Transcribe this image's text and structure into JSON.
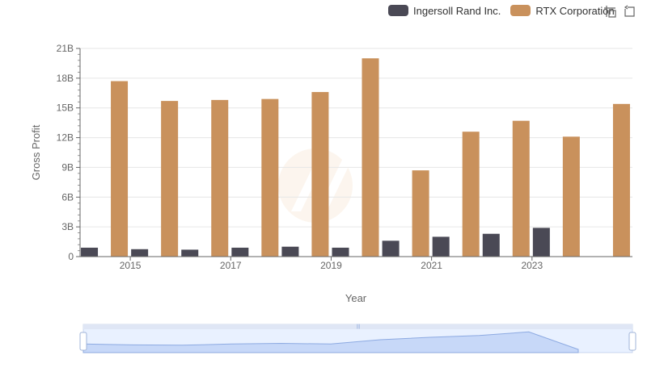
{
  "chart_data": {
    "type": "bar",
    "categories": [
      "2014",
      "2015",
      "2016",
      "2017",
      "2018",
      "2019",
      "2020",
      "2021",
      "2022",
      "2023",
      "2024"
    ],
    "series": [
      {
        "name": "Ingersoll Rand Inc.",
        "color": "#4a4955",
        "values": [
          0.9,
          0.75,
          0.7,
          0.9,
          1.0,
          0.9,
          1.6,
          2.0,
          2.3,
          2.9,
          null
        ]
      },
      {
        "name": "RTX Corporation",
        "color": "#c9915c",
        "values": [
          17.7,
          15.7,
          15.8,
          15.9,
          16.6,
          20.0,
          8.7,
          12.6,
          13.7,
          12.1,
          15.4
        ]
      }
    ],
    "xlabel": "Year",
    "ylabel": "Gross Profit",
    "ylim": [
      0,
      21
    ],
    "yticks": [
      0,
      3,
      6,
      9,
      12,
      15,
      18,
      21
    ],
    "ytick_labels": [
      "0",
      "3B",
      "6B",
      "9B",
      "12B",
      "15B",
      "18B",
      "21B"
    ],
    "xtick_labels": [
      "2015",
      "2017",
      "2019",
      "2021",
      "2023"
    ],
    "legend_position": "top-right"
  },
  "icons": {
    "zoom": "zoom-icon",
    "restore": "restore-icon"
  }
}
